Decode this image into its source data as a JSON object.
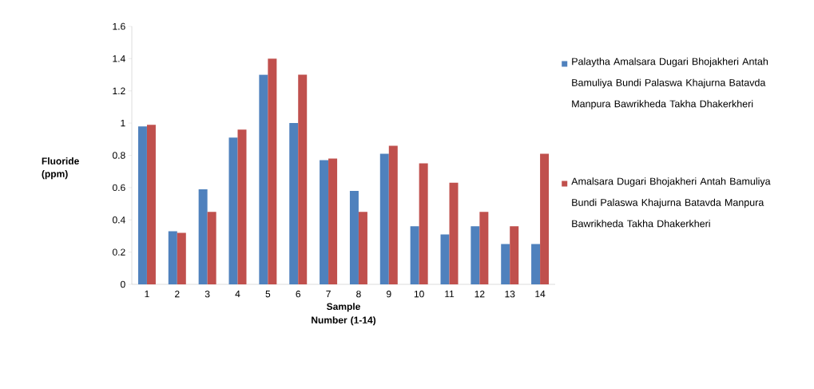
{
  "chart_data": {
    "type": "bar",
    "xlabel": "Sample Number (1-14)",
    "ylabel": "Fluoride (ppm)",
    "categories": [
      "1",
      "2",
      "3",
      "4",
      "5",
      "6",
      "7",
      "8",
      "9",
      "10",
      "11",
      "12",
      "13",
      "14"
    ],
    "series": [
      {
        "name": "Palaytha Amalsara Dugari Bhojakheri Antah Bamuliya Bundi Palaswa Khajurna Batavda Manpura Bawrikheda Takha Dhakerkheri",
        "color": "#4f81bd",
        "values": [
          0.98,
          0.33,
          0.59,
          0.91,
          1.3,
          1.0,
          0.77,
          0.58,
          0.81,
          0.36,
          0.31,
          0.36,
          0.25,
          0.25
        ]
      },
      {
        "name": "Amalsara Dugari Bhojakheri Antah Bamuliya Bundi Palaswa Khajurna Batavda Manpura Bawrikheda Takha Dhakerkheri",
        "color": "#c0504d",
        "values": [
          0.99,
          0.32,
          0.45,
          0.96,
          1.4,
          1.3,
          0.78,
          0.45,
          0.86,
          0.75,
          0.63,
          0.45,
          0.36,
          0.81
        ]
      }
    ],
    "ylim": [
      0,
      1.6
    ],
    "yticks": [
      0,
      0.2,
      0.4,
      0.6,
      0.8,
      1,
      1.2,
      1.4,
      1.6
    ],
    "legend": "right",
    "grid": false
  }
}
